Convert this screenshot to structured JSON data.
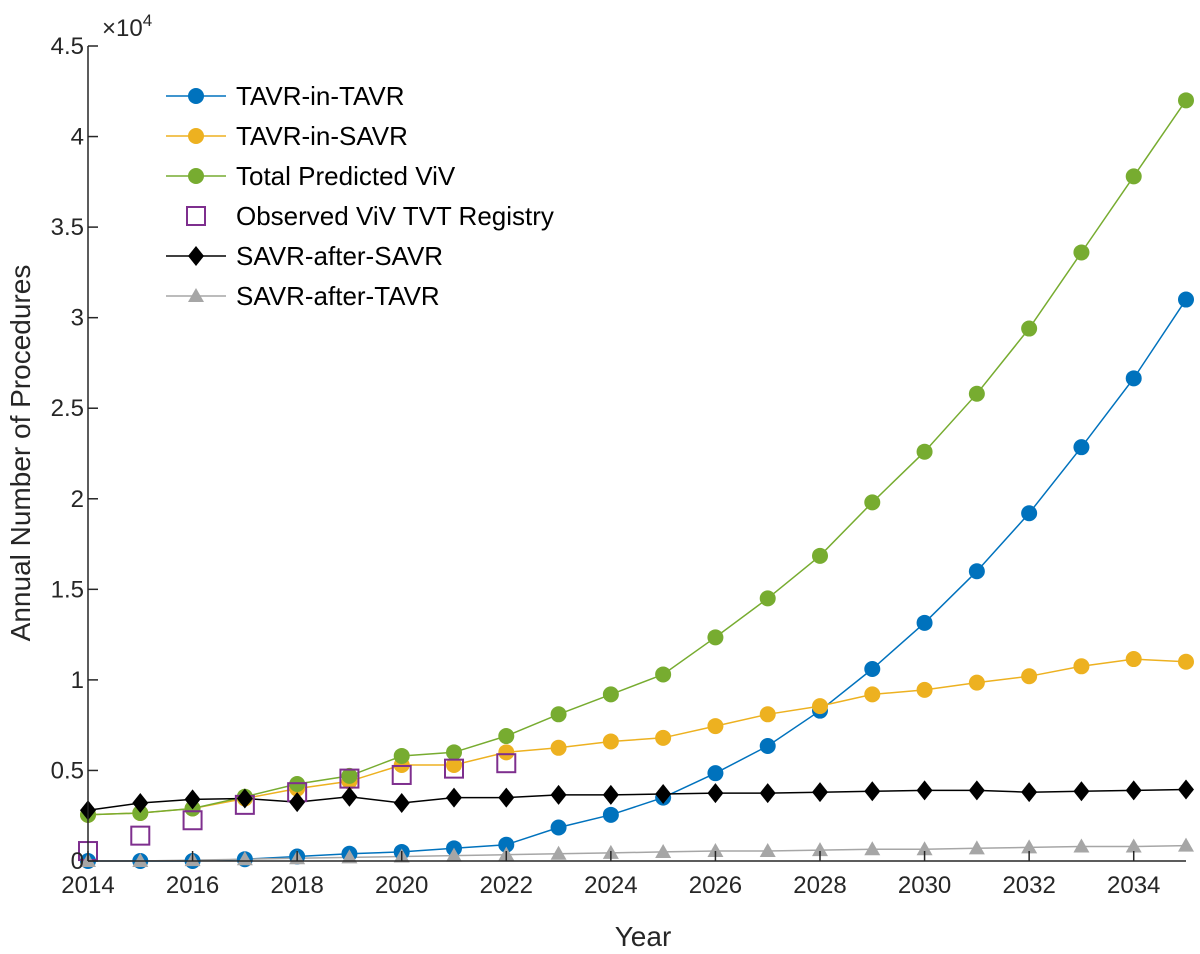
{
  "chart_data": {
    "type": "line",
    "xlabel": "Year",
    "ylabel": "Annual Number of Procedures",
    "y_exponent_label": "×10",
    "y_exponent_power": "4",
    "xlim": [
      2014,
      2035
    ],
    "ylim": [
      0,
      45000
    ],
    "x_ticks": [
      2014,
      2016,
      2018,
      2020,
      2022,
      2024,
      2026,
      2028,
      2030,
      2032,
      2034
    ],
    "x_tick_labels": [
      "2014",
      "2016",
      "2018",
      "2020",
      "2022",
      "2024",
      "2026",
      "2028",
      "2030",
      "2032",
      "2034"
    ],
    "y_ticks": [
      0,
      5000,
      10000,
      15000,
      20000,
      25000,
      30000,
      35000,
      40000,
      45000
    ],
    "y_tick_labels": [
      "0",
      "0.5",
      "1",
      "1.5",
      "2",
      "2.5",
      "3",
      "3.5",
      "4",
      "4.5"
    ],
    "grid": false,
    "legend_position": "top-left",
    "series": [
      {
        "name": "TAVR-in-TAVR",
        "color": "#0072BD",
        "marker": "circle",
        "line": true,
        "x": [
          2014,
          2015,
          2016,
          2017,
          2018,
          2019,
          2020,
          2021,
          2022,
          2023,
          2024,
          2025,
          2026,
          2027,
          2028,
          2029,
          2030,
          2031,
          2032,
          2033,
          2034,
          2035
        ],
        "values": [
          0,
          0,
          0,
          100,
          250,
          400,
          500,
          700,
          900,
          1850,
          2550,
          3500,
          4850,
          6350,
          8300,
          10600,
          13150,
          16000,
          19200,
          22850,
          26650,
          31000
        ]
      },
      {
        "name": "TAVR-in-SAVR",
        "color": "#EDB120",
        "marker": "circle",
        "line": true,
        "x": [
          2014,
          2015,
          2016,
          2017,
          2018,
          2019,
          2020,
          2021,
          2022,
          2023,
          2024,
          2025,
          2026,
          2027,
          2028,
          2029,
          2030,
          2031,
          2032,
          2033,
          2034,
          2035
        ],
        "values": [
          2550,
          2650,
          2900,
          3450,
          4000,
          4400,
          5300,
          5300,
          6000,
          6250,
          6600,
          6800,
          7450,
          8100,
          8550,
          9200,
          9450,
          9850,
          10200,
          10750,
          11150,
          11000
        ]
      },
      {
        "name": "Total Predicted ViV",
        "color": "#77AC30",
        "marker": "circle",
        "line": true,
        "x": [
          2014,
          2015,
          2016,
          2017,
          2018,
          2019,
          2020,
          2021,
          2022,
          2023,
          2024,
          2025,
          2026,
          2027,
          2028,
          2029,
          2030,
          2031,
          2032,
          2033,
          2034,
          2035
        ],
        "values": [
          2550,
          2650,
          2900,
          3550,
          4250,
          4700,
          5800,
          6000,
          6900,
          8100,
          9200,
          10300,
          12350,
          14500,
          16850,
          19800,
          22600,
          25800,
          29400,
          33600,
          37800,
          42000
        ]
      },
      {
        "name": "Observed ViV TVT Registry",
        "color": "#7E2F8E",
        "marker": "square",
        "line": false,
        "x": [
          2014,
          2015,
          2016,
          2017,
          2018,
          2019,
          2020,
          2021,
          2022
        ],
        "values": [
          550,
          1400,
          2250,
          3100,
          3800,
          4550,
          4750,
          5100,
          5400
        ]
      },
      {
        "name": "SAVR-after-SAVR",
        "color": "#000000",
        "marker": "diamond",
        "line": true,
        "x": [
          2014,
          2015,
          2016,
          2017,
          2018,
          2019,
          2020,
          2021,
          2022,
          2023,
          2024,
          2025,
          2026,
          2027,
          2028,
          2029,
          2030,
          2031,
          2032,
          2033,
          2034,
          2035
        ],
        "values": [
          2800,
          3200,
          3400,
          3450,
          3250,
          3550,
          3200,
          3500,
          3500,
          3650,
          3650,
          3700,
          3750,
          3750,
          3800,
          3850,
          3900,
          3900,
          3800,
          3850,
          3900,
          3950
        ]
      },
      {
        "name": "SAVR-after-TAVR",
        "color": "#A6A6A6",
        "marker": "triangle",
        "line": true,
        "x": [
          2014,
          2015,
          2016,
          2017,
          2018,
          2019,
          2020,
          2021,
          2022,
          2023,
          2024,
          2025,
          2026,
          2027,
          2028,
          2029,
          2030,
          2031,
          2032,
          2033,
          2034,
          2035
        ],
        "values": [
          0,
          0,
          50,
          100,
          150,
          200,
          250,
          300,
          350,
          400,
          450,
          500,
          550,
          550,
          600,
          650,
          650,
          700,
          750,
          800,
          800,
          850
        ]
      }
    ]
  }
}
